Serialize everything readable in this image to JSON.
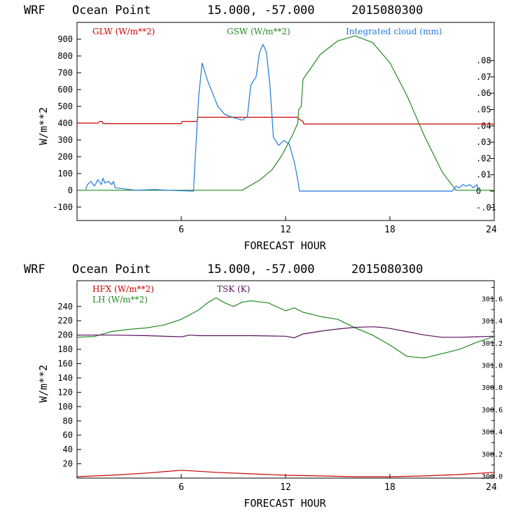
{
  "header": {
    "model": "WRF",
    "location": "Ocean Point",
    "coords": "15.000, -57.000",
    "date": "2015080300"
  },
  "colors": {
    "red": "#cc0000",
    "green": "#228b22",
    "blue": "#1e78dc",
    "purple": "#5a1060"
  },
  "chart_data": [
    {
      "type": "line",
      "ylabel": "W/m**2",
      "xlabel": "FORECAST HOUR",
      "xlim": [
        0,
        24
      ],
      "x_ticks": [
        6,
        12,
        18,
        24
      ],
      "ylim": [
        -180,
        1000
      ],
      "y_ticks": [
        -100,
        0,
        100,
        200,
        300,
        400,
        500,
        600,
        700,
        800,
        900
      ],
      "right_axis": {
        "ticks": [
          -0.01,
          0,
          0.01,
          0.02,
          0.03,
          0.04,
          0.05,
          0.06,
          0.07,
          0.08
        ],
        "tick_labels": [
          "-.01",
          "0",
          ".01",
          ".02",
          ".03",
          ".04",
          ".05",
          ".06",
          ".07",
          ".08"
        ]
      },
      "series": [
        {
          "name": "GLW (W/m**2)",
          "color": "red",
          "axis": "left",
          "x": [
            0,
            1.2,
            1.3,
            1.45,
            1.5,
            6.0,
            6.05,
            6.9,
            6.95,
            12.7,
            12.75,
            13.0,
            13.05,
            24
          ],
          "y": [
            400,
            400,
            410,
            410,
            397,
            397,
            410,
            410,
            435,
            435,
            425,
            410,
            395,
            395
          ]
        },
        {
          "name": "GSW (W/m**2)",
          "color": "green",
          "axis": "left",
          "x": [
            0,
            9.5,
            10.5,
            11.2,
            11.8,
            12.4,
            12.7,
            12.75,
            12.9,
            13.0,
            14.0,
            15.0,
            16.0,
            17.0,
            18.0,
            19.0,
            20.0,
            21.0,
            21.8,
            24
          ],
          "y": [
            0,
            0,
            60,
            120,
            210,
            330,
            400,
            480,
            500,
            660,
            810,
            890,
            920,
            880,
            760,
            560,
            320,
            110,
            0,
            0
          ]
        },
        {
          "name": "Integrated cloud (mm)",
          "color": "blue",
          "axis": "right",
          "x": [
            0.5,
            0.6,
            0.8,
            1.0,
            1.2,
            1.4,
            1.5,
            1.6,
            1.8,
            2.0,
            2.1,
            2.2,
            3.4,
            4.5,
            5.2,
            6.7,
            6.8,
            7.0,
            7.2,
            7.3,
            7.5,
            7.8,
            8.1,
            8.5,
            9.0,
            9.5,
            9.8,
            10.0,
            10.3,
            10.5,
            10.7,
            10.9,
            11.1,
            11.3,
            11.6,
            11.9,
            12.2,
            12.5,
            12.7,
            12.8,
            21.6,
            21.8,
            22.0,
            22.2,
            22.4,
            22.6,
            22.8,
            23.0,
            23.1
          ],
          "y": [
            0.001,
            0.004,
            0.006,
            0.003,
            0.007,
            0.004,
            0.008,
            0.005,
            0.006,
            0.004,
            0.006,
            0.002,
            0.0005,
            0.001,
            0.0005,
            0.0,
            0.02,
            0.058,
            0.0785,
            0.075,
            0.068,
            0.06,
            0.052,
            0.047,
            0.045,
            0.0435,
            0.0458,
            0.065,
            0.07,
            0.085,
            0.09,
            0.085,
            0.065,
            0.033,
            0.028,
            0.031,
            0.029,
            0.018,
            0.007,
            0.0,
            0.0,
            0.003,
            0.002,
            0.004,
            0.003,
            0.004,
            0.002,
            0.004,
            0.0
          ]
        }
      ]
    },
    {
      "type": "line",
      "ylabel": "W/m**2",
      "xlabel": "FORECAST HOUR",
      "xlim": [
        0,
        24
      ],
      "x_ticks": [
        6,
        12,
        18,
        24
      ],
      "ylim": [
        0,
        276
      ],
      "y_ticks": [
        20,
        40,
        60,
        80,
        100,
        120,
        140,
        160,
        180,
        200,
        220,
        240
      ],
      "right_axis": {
        "ylim": [
          299.981,
          301.76
        ],
        "ticks": [
          300.0,
          300.2,
          300.4,
          300.6,
          300.8,
          301.0,
          301.2,
          301.4,
          301.6
        ],
        "tick_labels": [
          "300.0",
          "300.2",
          "300.4",
          "300.6",
          "300.8",
          "301.0",
          "301.2",
          "301.4",
          "301.6"
        ]
      },
      "series": [
        {
          "name": "HFX (W/m**2)",
          "color": "red",
          "axis": "left",
          "x": [
            0,
            2,
            4,
            6,
            8,
            10,
            12,
            14,
            16,
            18,
            20,
            22,
            24
          ],
          "y": [
            2,
            4,
            7,
            11,
            8,
            6,
            4,
            3,
            2,
            2,
            3,
            5,
            8
          ]
        },
        {
          "name": "LH (W/m**2)",
          "color": "green",
          "axis": "left",
          "x": [
            0,
            1,
            2,
            3,
            4,
            5,
            6,
            7,
            7.5,
            8,
            8.5,
            9,
            9.5,
            10,
            11,
            12,
            12.5,
            13,
            14,
            15,
            16,
            17,
            18,
            19,
            20,
            21,
            22,
            23,
            24
          ],
          "y": [
            197,
            198,
            205,
            208,
            210,
            214,
            222,
            235,
            245,
            252,
            245,
            240,
            246,
            248,
            245,
            234,
            238,
            232,
            226,
            222,
            210,
            200,
            186,
            170,
            168,
            174,
            180,
            190,
            198
          ],
          "_note": ""
        },
        {
          "name": "TSK (K)",
          "color": "purple",
          "axis": "right",
          "x": [
            0,
            2,
            4,
            6,
            6.5,
            7,
            8,
            10,
            12,
            12.5,
            13,
            14,
            15,
            16,
            17,
            17.5,
            18,
            19,
            20,
            21,
            22,
            23,
            24
          ],
          "y": [
            301.27,
            301.27,
            301.265,
            301.255,
            301.27,
            301.265,
            301.265,
            301.265,
            301.26,
            301.245,
            301.28,
            301.305,
            301.325,
            301.34,
            301.345,
            301.34,
            301.33,
            301.3,
            301.27,
            301.25,
            301.25,
            301.255,
            301.26
          ]
        }
      ]
    }
  ]
}
